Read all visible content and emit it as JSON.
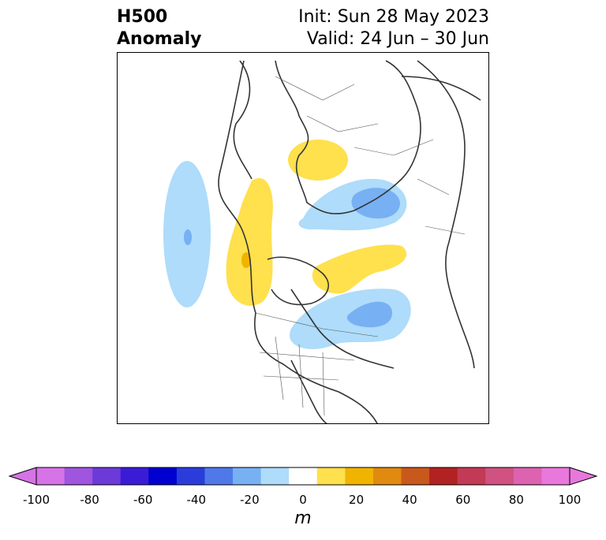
{
  "title": {
    "left_line1": "H500",
    "left_line2": "Anomaly",
    "right_line1": "Init: Sun 28 May 2023",
    "right_line2": "Valid: 24 Jun – 30 Jun"
  },
  "colorbar": {
    "unit": "m",
    "min": -100,
    "max": 100,
    "tick_labels": [
      "-100",
      "-80",
      "-60",
      "-40",
      "-20",
      "0",
      "20",
      "40",
      "60",
      "80",
      "100"
    ],
    "colors": [
      "#d673e6",
      "#9f55de",
      "#6c3ad8",
      "#3a1cd6",
      "#0000d0",
      "#2a3ddb",
      "#4f79e8",
      "#78b0f4",
      "#aedcfa",
      "#ffffff",
      "#ffe04d",
      "#f0b400",
      "#e08a10",
      "#c9581c",
      "#b32222",
      "#c23a55",
      "#cf5280",
      "#dd62b0",
      "#e878db"
    ]
  },
  "anomaly_colors": {
    "light_blue": "#aedcfa",
    "mid_blue": "#78b0f4",
    "yellow": "#ffe04d",
    "orange": "#f0b400"
  }
}
